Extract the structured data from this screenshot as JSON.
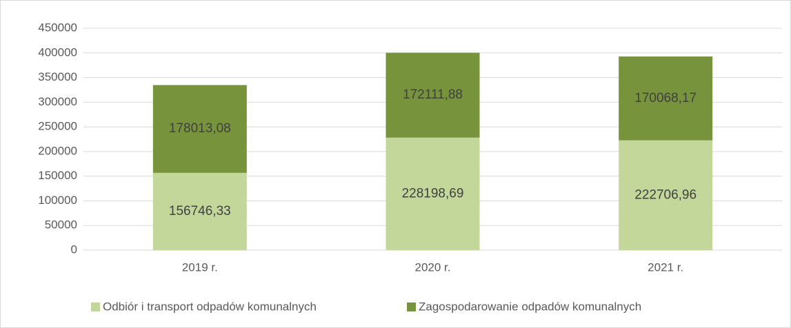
{
  "chart_data": {
    "type": "stacked_bar",
    "categories": [
      "2019 r.",
      "2020 r.",
      "2021 r."
    ],
    "series": [
      {
        "name": "Odbiór i transport odpadów komunalnych",
        "color": "#c4d79b",
        "values": [
          156746.33,
          228198.69,
          222706.96
        ],
        "value_labels": [
          "156746,33",
          "228198,69",
          "222706,96"
        ]
      },
      {
        "name": "Zagospodarowanie odpadów komunalnych",
        "color": "#77933c",
        "values": [
          178013.08,
          172111.88,
          170068.17
        ],
        "value_labels": [
          "178013,08",
          "172111,88",
          "170068,17"
        ]
      }
    ],
    "ylim": [
      0,
      450000
    ],
    "yticks": [
      0,
      50000,
      100000,
      150000,
      200000,
      250000,
      300000,
      350000,
      400000,
      450000
    ],
    "grid": true,
    "legend": "bottom"
  }
}
